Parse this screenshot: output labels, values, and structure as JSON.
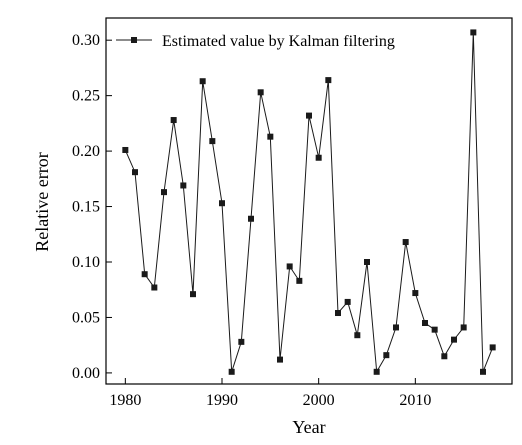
{
  "chart_data": {
    "type": "line",
    "xlabel": "Year",
    "ylabel": "Relative error",
    "xlim": [
      1978,
      2020
    ],
    "ylim": [
      -0.01,
      0.32
    ],
    "xticks": [
      1980,
      1990,
      2000,
      2010
    ],
    "yticks": [
      0.0,
      0.05,
      0.1,
      0.15,
      0.2,
      0.25,
      0.3
    ],
    "ytick_labels": [
      "0.00",
      "0.05",
      "0.10",
      "0.15",
      "0.20",
      "0.25",
      "0.30"
    ],
    "legend_position": "top-left",
    "grid": false,
    "series": [
      {
        "name": "Estimated value by Kalman filtering",
        "color": "#1a1a1a",
        "marker": "square",
        "x": [
          1980,
          1981,
          1982,
          1983,
          1984,
          1985,
          1986,
          1987,
          1988,
          1989,
          1990,
          1991,
          1992,
          1993,
          1994,
          1995,
          1996,
          1997,
          1998,
          1999,
          2000,
          2001,
          2002,
          2003,
          2004,
          2005,
          2006,
          2007,
          2008,
          2009,
          2010,
          2011,
          2012,
          2013,
          2014,
          2015,
          2016,
          2017,
          2018
        ],
        "y": [
          0.201,
          0.181,
          0.089,
          0.077,
          0.163,
          0.228,
          0.169,
          0.071,
          0.263,
          0.209,
          0.153,
          0.001,
          0.028,
          0.139,
          0.253,
          0.213,
          0.012,
          0.096,
          0.083,
          0.232,
          0.194,
          0.264,
          0.054,
          0.064,
          0.034,
          0.1,
          0.001,
          0.016,
          0.041,
          0.118,
          0.072,
          0.045,
          0.039,
          0.015,
          0.03,
          0.041,
          0.307,
          0.001,
          0.023
        ]
      }
    ]
  }
}
